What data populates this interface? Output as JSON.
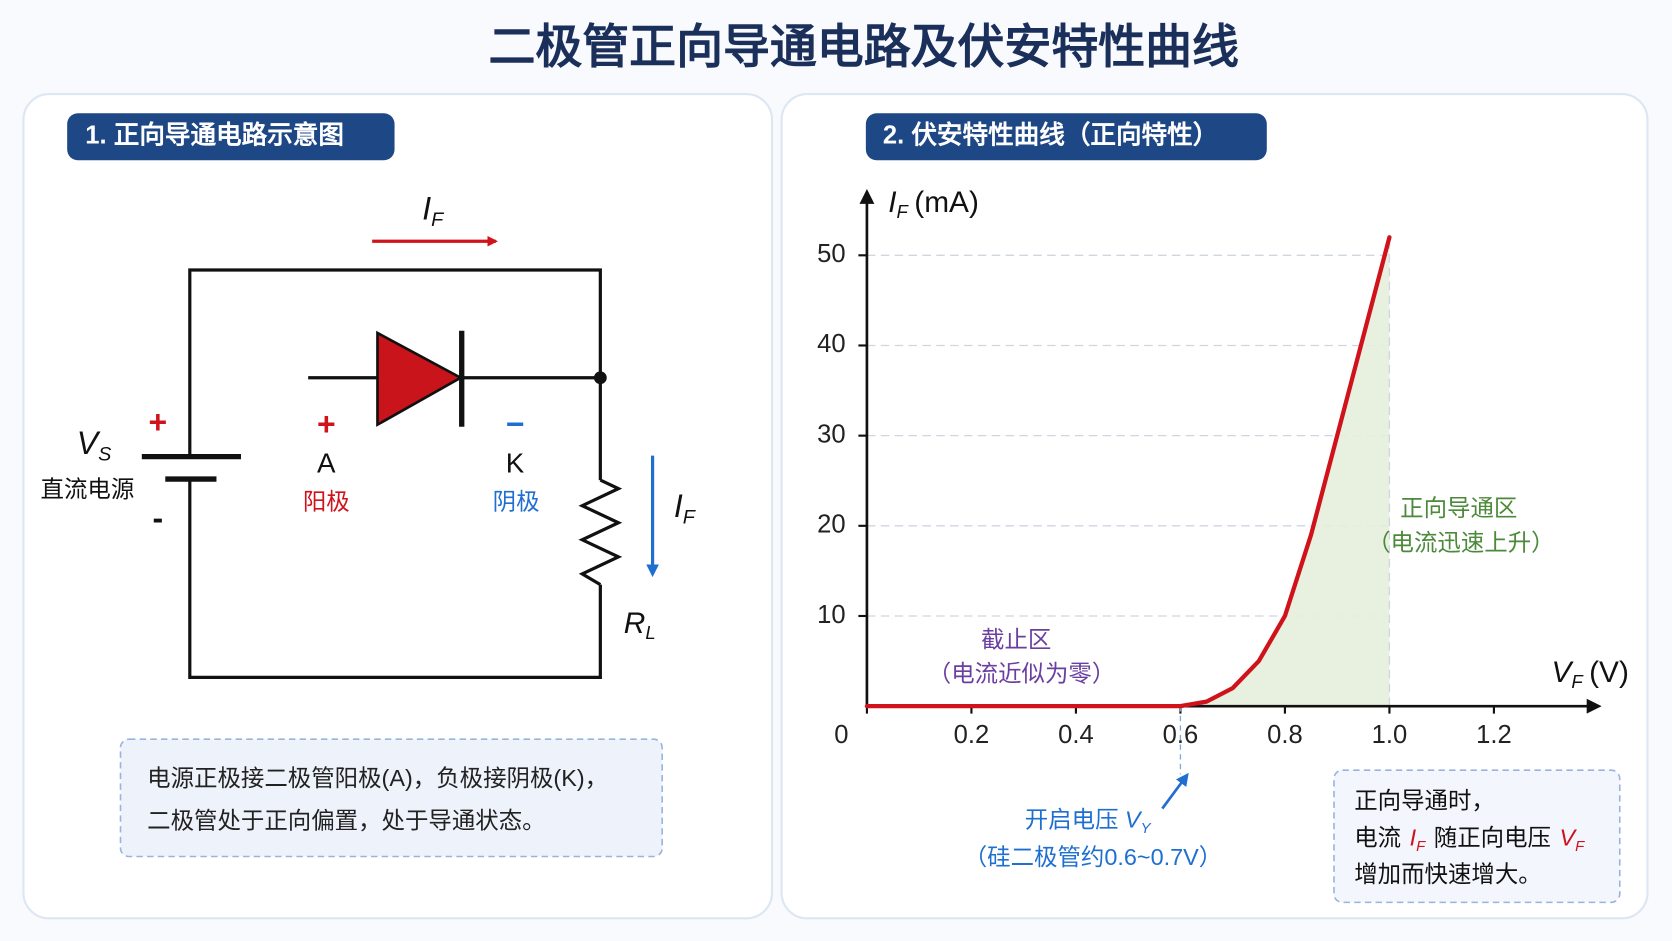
{
  "title": "二极管正向导通电路及伏安特性曲线",
  "circuit": {
    "heading": "1. 正向导通电路示意图",
    "top_current": {
      "symbol": "I",
      "subscript": "F"
    },
    "source": {
      "symbol": "V",
      "subscript": "S",
      "name": "直流电源",
      "plus": "+",
      "minus": "-"
    },
    "anode": {
      "sign": "+",
      "letter": "A",
      "name": "阳极"
    },
    "cathode": {
      "sign": "−",
      "letter": "K",
      "name": "阴极"
    },
    "side_current": {
      "symbol": "I",
      "subscript": "F"
    },
    "resistor": {
      "symbol": "R",
      "subscript": "L"
    },
    "note": [
      "电源正极接二极管阳极(A)，负极接阴极(K)，",
      "二极管处于正向偏置，处于导通状态。"
    ]
  },
  "chart_data": {
    "type": "line",
    "title": "2. 伏安特性曲线（正向特性）",
    "y_label": {
      "symbol": "I",
      "subscript": "F",
      "unit": "(mA)"
    },
    "x_label": {
      "symbol": "V",
      "subscript": "F",
      "unit": "(V)"
    },
    "x": [
      0,
      0.1,
      0.2,
      0.3,
      0.4,
      0.5,
      0.6,
      0.65,
      0.7,
      0.75,
      0.8,
      0.85,
      0.9,
      0.95,
      1.0
    ],
    "values": [
      0,
      0,
      0,
      0,
      0,
      0,
      0,
      0.5,
      2,
      5,
      10,
      19,
      30,
      41,
      52
    ],
    "color": "#d0121b",
    "fill_color": "#e6eedb",
    "xlim": [
      0,
      1.4
    ],
    "ylim": [
      0,
      57
    ],
    "xticks": [
      0,
      0.2,
      0.4,
      0.6,
      0.8,
      {
        "value": 1,
        "label": "1.0"
      },
      1.2
    ],
    "yticks": [
      10,
      20,
      30,
      40,
      50
    ],
    "grid": true,
    "annotations": {
      "cutoff": [
        "截止区",
        "（电流近似为零）"
      ],
      "conduction": [
        "正向导通区",
        "（电流迅速上升）"
      ],
      "threshold": {
        "text": "开启电压",
        "symbol": "V",
        "subscript": "Y",
        "note": "（硅二极管约0.6~0.7V）"
      },
      "summary": {
        "line1": "正向导通时，",
        "line2_a": "电流",
        "current": {
          "symbol": "I",
          "subscript": "F"
        },
        "line2_b": "随正向电压",
        "voltage": {
          "symbol": "V",
          "subscript": "F"
        },
        "line3": "增加而快速增大。"
      }
    }
  }
}
